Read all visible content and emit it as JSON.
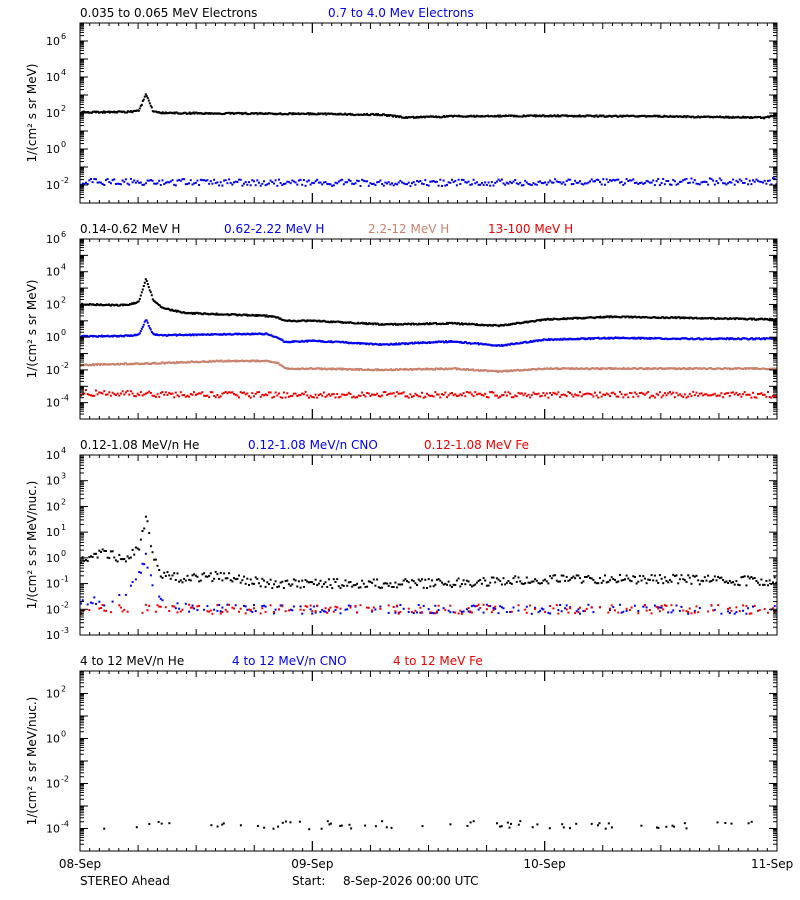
{
  "footer": {
    "mission": "STEREO Ahead",
    "start_label": "Start:",
    "start_value": "8-Sep-2026 00:00 UTC"
  },
  "x_axis": {
    "ticks": [
      "08-Sep",
      "09-Sep",
      "10-Sep",
      "11-Sep"
    ],
    "tick_values": [
      0,
      1,
      2,
      3
    ],
    "minor_per_major": 24
  },
  "colors": {
    "black": "#000000",
    "blue": "#0000ee",
    "tan": "#c8826e",
    "red": "#ee0000"
  },
  "chart_data": [
    {
      "type": "scatter",
      "ylabel": "1/(cm² s sr MeV)",
      "yscale": "log",
      "ylim": [
        0.001,
        10000000
      ],
      "xlim": [
        0,
        3
      ],
      "y_ticks": [
        {
          "exp": -2,
          "base": "10",
          "sup": "-2"
        },
        {
          "exp": 0,
          "base": "10",
          "sup": "0"
        },
        {
          "exp": 2,
          "base": "10",
          "sup": "2"
        },
        {
          "exp": 4,
          "base": "10",
          "sup": "4"
        },
        {
          "exp": 6,
          "base": "10",
          "sup": "6"
        }
      ],
      "series": [
        {
          "name": "0.035 to 0.065 MeV Electrons",
          "color": "#000000",
          "style": "line",
          "x": [
            0,
            0.2,
            0.25,
            0.28,
            0.31,
            0.34,
            0.6,
            1.0,
            1.3,
            1.4,
            1.6,
            2.0,
            2.5,
            2.95,
            3.0
          ],
          "y": [
            110,
            115,
            130,
            1200,
            130,
            100,
            95,
            90,
            80,
            55,
            65,
            70,
            65,
            55,
            85
          ]
        },
        {
          "name": "0.7 to 4.0 Mev Electrons",
          "color": "#0000ee",
          "style": "scatter",
          "x": [
            0,
            0.5,
            1.0,
            1.5,
            2.0,
            2.5,
            3.0
          ],
          "y": [
            0.015,
            0.014,
            0.013,
            0.013,
            0.014,
            0.015,
            0.016
          ]
        }
      ]
    },
    {
      "type": "scatter",
      "ylabel": "1/(cm² s sr MeV)",
      "yscale": "log",
      "ylim": [
        1e-05,
        1000000
      ],
      "xlim": [
        0,
        3
      ],
      "y_ticks": [
        {
          "exp": -4,
          "base": "10",
          "sup": "-4"
        },
        {
          "exp": -2,
          "base": "10",
          "sup": "-2"
        },
        {
          "exp": 0,
          "base": "10",
          "sup": "0"
        },
        {
          "exp": 2,
          "base": "10",
          "sup": "2"
        },
        {
          "exp": 4,
          "base": "10",
          "sup": "4"
        },
        {
          "exp": 6,
          "base": "10",
          "sup": "6"
        }
      ],
      "series": [
        {
          "name": "0.14-0.62 MeV H",
          "color": "#000000",
          "style": "line",
          "x": [
            0,
            0.2,
            0.25,
            0.28,
            0.31,
            0.35,
            0.45,
            0.6,
            0.8,
            0.85,
            0.88,
            1.0,
            1.3,
            1.6,
            1.8,
            2.0,
            2.3,
            2.6,
            3.0
          ],
          "y": [
            100,
            90,
            150,
            4000,
            200,
            60,
            30,
            25,
            20,
            15,
            10,
            10,
            6,
            7,
            5,
            12,
            18,
            15,
            12
          ]
        },
        {
          "name": "0.62-2.22 MeV H",
          "color": "#0000ee",
          "style": "line",
          "x": [
            0,
            0.2,
            0.25,
            0.28,
            0.31,
            0.35,
            0.6,
            0.8,
            0.85,
            0.88,
            1.0,
            1.3,
            1.6,
            1.8,
            2.0,
            2.3,
            2.6,
            3.0
          ],
          "y": [
            1.1,
            1.2,
            1.4,
            12,
            1.5,
            1.3,
            1.5,
            1.6,
            0.9,
            0.5,
            0.6,
            0.35,
            0.55,
            0.3,
            0.7,
            0.9,
            0.8,
            0.8
          ]
        },
        {
          "name": "2.2-12 MeV H",
          "color": "#c8826e",
          "style": "line",
          "x": [
            0,
            0.3,
            0.6,
            0.8,
            0.85,
            0.88,
            1.0,
            1.3,
            1.6,
            1.8,
            2.0,
            2.5,
            3.0
          ],
          "y": [
            0.02,
            0.025,
            0.035,
            0.035,
            0.025,
            0.012,
            0.012,
            0.01,
            0.012,
            0.008,
            0.012,
            0.012,
            0.012
          ]
        },
        {
          "name": "13-100 MeV H",
          "color": "#ee0000",
          "style": "scatter",
          "x": [
            0,
            0.5,
            1.0,
            1.5,
            2.0,
            2.5,
            3.0
          ],
          "y": [
            0.0004,
            0.0003,
            0.0003,
            0.0003,
            0.0003,
            0.0003,
            0.0003
          ]
        }
      ]
    },
    {
      "type": "scatter",
      "ylabel": "1/(cm² s sr MeV/nuc.)",
      "yscale": "log",
      "ylim": [
        0.001,
        10000
      ],
      "xlim": [
        0,
        3
      ],
      "y_ticks": [
        {
          "exp": -3,
          "base": "10",
          "sup": "-3"
        },
        {
          "exp": -2,
          "base": "10",
          "sup": "-2"
        },
        {
          "exp": -1,
          "base": "10",
          "sup": "-1"
        },
        {
          "exp": 0,
          "base": "10",
          "sup": "0"
        },
        {
          "exp": 1,
          "base": "10",
          "sup": "1"
        },
        {
          "exp": 2,
          "base": "10",
          "sup": "2"
        },
        {
          "exp": 3,
          "base": "10",
          "sup": "3"
        },
        {
          "exp": 4,
          "base": "10",
          "sup": "4"
        }
      ],
      "series": [
        {
          "name": "0.12-1.08 MeV/n He",
          "color": "#000000",
          "style": "scatter",
          "x": [
            0,
            0.1,
            0.2,
            0.25,
            0.28,
            0.31,
            0.35,
            0.45,
            0.6,
            0.8,
            1.0,
            1.5,
            2.0,
            2.5,
            3.0
          ],
          "y": [
            1.0,
            1.5,
            0.8,
            3,
            40,
            1.5,
            0.2,
            0.15,
            0.2,
            0.1,
            0.1,
            0.1,
            0.15,
            0.15,
            0.12
          ]
        },
        {
          "name": "0.12-1.08 MeV/n CNO",
          "color": "#0000ee",
          "style": "scatter",
          "x": [
            0,
            0.15,
            0.25,
            0.28,
            0.31,
            0.35,
            0.5,
            1.0,
            1.5,
            2.0,
            2.5,
            3.0
          ],
          "y": [
            0.02,
            0.02,
            0.2,
            1.0,
            0.1,
            0.02,
            0.01,
            0.01,
            0.01,
            0.01,
            0.01,
            0.01
          ]
        },
        {
          "name": "0.12-1.08 MeV Fe",
          "color": "#ee0000",
          "style": "scatter",
          "x": [
            0,
            0.5,
            1.0,
            1.5,
            2.0,
            2.5,
            3.0
          ],
          "y": [
            0.01,
            0.01,
            0.01,
            0.01,
            0.01,
            0.01,
            0.01
          ]
        }
      ]
    },
    {
      "type": "scatter",
      "ylabel": "1/(cm² s sr MeV/nuc.)",
      "yscale": "log",
      "ylim": [
        1e-05,
        1000
      ],
      "xlim": [
        0,
        3
      ],
      "y_ticks": [
        {
          "exp": -4,
          "base": "10",
          "sup": "-4"
        },
        {
          "exp": -2,
          "base": "10",
          "sup": "-2"
        },
        {
          "exp": 0,
          "base": "10",
          "sup": "0"
        },
        {
          "exp": 2,
          "base": "10",
          "sup": "2"
        }
      ],
      "series": [
        {
          "name": "4 to 12 MeV/n He",
          "color": "#000000",
          "style": "scatter",
          "x": [
            0.1,
            0.5,
            1.0,
            1.5,
            2.0,
            2.5,
            2.9
          ],
          "y": [
            0.00014,
            0.00014,
            0.00014,
            0.00016,
            0.00014,
            0.00014,
            0.00015
          ]
        },
        {
          "name": "4 to 12 MeV/n CNO",
          "color": "#0000ee",
          "style": "scatter",
          "x": [],
          "y": []
        },
        {
          "name": "4 to 12 MeV Fe",
          "color": "#ee0000",
          "style": "scatter",
          "x": [],
          "y": []
        }
      ]
    }
  ]
}
